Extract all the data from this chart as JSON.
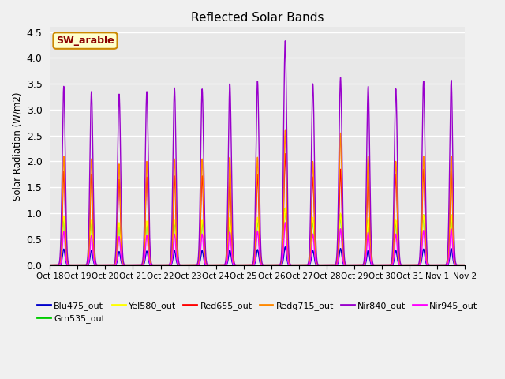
{
  "title": "Reflected Solar Bands",
  "ylabel": "Solar Radiation (W/m2)",
  "xlabel": "",
  "ylim": [
    0,
    4.6
  ],
  "yticks": [
    0.0,
    0.5,
    1.0,
    1.5,
    2.0,
    2.5,
    3.0,
    3.5,
    4.0,
    4.5
  ],
  "background_color": "#f0f0f0",
  "plot_bg_color": "#e8e8e8",
  "grid_color": "white",
  "annotation_text": "SW_arable",
  "annotation_bbox": {
    "facecolor": "#ffffcc",
    "edgecolor": "#cc8800"
  },
  "series": [
    {
      "label": "Blu475_out",
      "color": "#0000cc",
      "lw": 1.0
    },
    {
      "label": "Grn535_out",
      "color": "#00cc00",
      "lw": 1.0
    },
    {
      "label": "Yel580_out",
      "color": "#ffff00",
      "lw": 1.0
    },
    {
      "label": "Red655_out",
      "color": "#ff0000",
      "lw": 1.0
    },
    {
      "label": "Redg715_out",
      "color": "#ff8800",
      "lw": 1.0
    },
    {
      "label": "Nir840_out",
      "color": "#9900cc",
      "lw": 1.0
    },
    {
      "label": "Nir945_out",
      "color": "#ff00ff",
      "lw": 1.0
    }
  ],
  "num_days": 15,
  "day_start": 18,
  "points_per_day": 288,
  "nir840_peaks": [
    3.45,
    3.35,
    3.3,
    3.35,
    3.42,
    3.4,
    3.5,
    3.55,
    4.33,
    3.5,
    3.62,
    3.45,
    3.4,
    3.55,
    3.57
  ],
  "red655_peaks": [
    1.8,
    1.75,
    1.65,
    1.7,
    1.72,
    1.72,
    1.75,
    1.75,
    2.15,
    1.7,
    1.85,
    1.8,
    1.75,
    1.85,
    1.83
  ],
  "redg715_peaks": [
    2.1,
    2.05,
    1.95,
    2.0,
    2.05,
    2.05,
    2.08,
    2.08,
    2.6,
    2.0,
    2.55,
    2.1,
    2.0,
    2.1,
    2.1
  ],
  "yel580_peaks": [
    0.95,
    0.88,
    0.82,
    0.85,
    0.88,
    0.88,
    0.92,
    0.92,
    1.1,
    0.92,
    1.0,
    0.92,
    0.88,
    0.97,
    0.97
  ],
  "grn535_peaks": [
    0.92,
    0.85,
    0.8,
    0.82,
    0.85,
    0.85,
    0.88,
    0.88,
    1.1,
    0.88,
    0.98,
    0.88,
    0.85,
    0.97,
    0.97
  ],
  "blu475_peaks": [
    0.31,
    0.28,
    0.26,
    0.27,
    0.28,
    0.28,
    0.29,
    0.3,
    0.35,
    0.28,
    0.32,
    0.29,
    0.28,
    0.31,
    0.32
  ],
  "nir945_peaks": [
    0.65,
    0.58,
    0.55,
    0.57,
    0.6,
    0.6,
    0.64,
    0.66,
    0.82,
    0.6,
    0.7,
    0.63,
    0.6,
    0.67,
    0.7
  ],
  "x_tick_labels": [
    "Oct 18",
    "Oct 19",
    "Oct 20",
    "Oct 21",
    "Oct 22",
    "Oct 23",
    "Oct 24",
    "Oct 25",
    "Oct 26",
    "Oct 27",
    "Oct 28",
    "Oct 29",
    "Oct 30",
    "Oct 31",
    "Nov 1",
    "Nov 2"
  ],
  "legend_ncol": 6,
  "legend_fontsize": 8.0
}
